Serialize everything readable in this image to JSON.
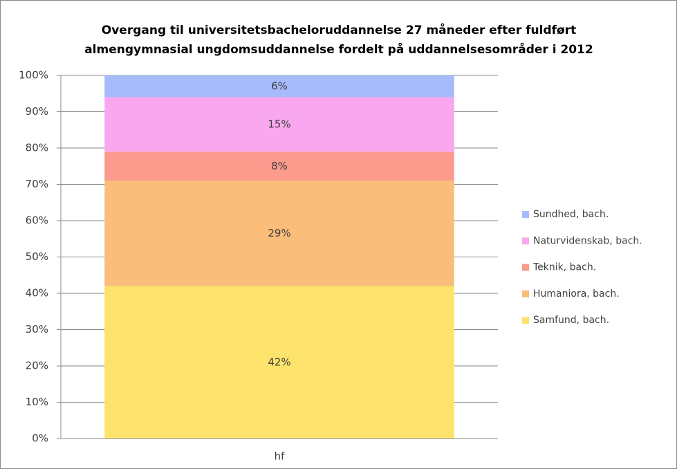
{
  "chart_data": {
    "type": "stacked_bar",
    "title": [
      "Overgang til universitetsbacheloruddannelse 27 måneder efter fuldført",
      "almengymnasial ungdomsuddannelse fordelt på uddannelsesområder i 2012"
    ],
    "categories": [
      "hf"
    ],
    "series": [
      {
        "name": "Samfund, bach.",
        "color": "#fde36b",
        "values": [
          42
        ],
        "value_labels": [
          "42%"
        ]
      },
      {
        "name": "Humaniora, bach.",
        "color": "#fbbd7a",
        "values": [
          29
        ],
        "value_labels": [
          "29%"
        ]
      },
      {
        "name": "Teknik, bach.",
        "color": "#fb9a8d",
        "values": [
          8
        ],
        "value_labels": [
          "8%"
        ]
      },
      {
        "name": "Naturvidenskab, bach.",
        "color": "#f9a8ef",
        "values": [
          15
        ],
        "value_labels": [
          "15%"
        ]
      },
      {
        "name": "Sundhed, bach.",
        "color": "#a6bbfb",
        "values": [
          6
        ],
        "value_labels": [
          "6%"
        ]
      }
    ],
    "ylim": [
      0,
      100
    ],
    "yticks": [
      {
        "value": 0,
        "label": "0%"
      },
      {
        "value": 10,
        "label": "10%"
      },
      {
        "value": 20,
        "label": "20%"
      },
      {
        "value": 30,
        "label": "30%"
      },
      {
        "value": 40,
        "label": "40%"
      },
      {
        "value": 50,
        "label": "50%"
      },
      {
        "value": 60,
        "label": "60%"
      },
      {
        "value": 70,
        "label": "70%"
      },
      {
        "value": 80,
        "label": "80%"
      },
      {
        "value": 90,
        "label": "90%"
      },
      {
        "value": 100,
        "label": "100%"
      }
    ],
    "grid": true,
    "legend": "right"
  }
}
